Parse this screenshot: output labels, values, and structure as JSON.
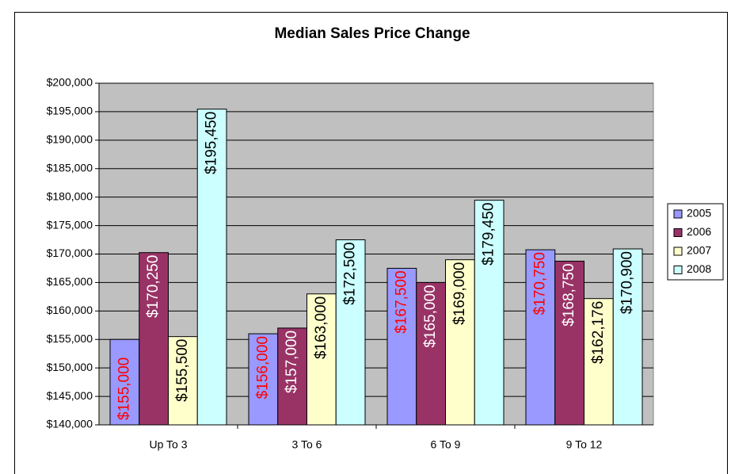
{
  "chart_data": {
    "type": "bar",
    "title": "Median Sales Price Change",
    "categories": [
      "Up To 3",
      "3 To 6",
      "6 To 9",
      "9 To 12"
    ],
    "series": [
      {
        "name": "2005",
        "color": "#9999ff",
        "label_color": "#ff0000",
        "values": [
          155000,
          156000,
          167500,
          170750
        ],
        "value_labels": [
          "$155,000",
          "$156,000",
          "$167,500",
          "$170,750"
        ]
      },
      {
        "name": "2006",
        "color": "#993366",
        "label_color": "#ffffff",
        "values": [
          170250,
          157000,
          165000,
          168750
        ],
        "value_labels": [
          "$170,250",
          "$157,000",
          "$165,000",
          "$168,750"
        ]
      },
      {
        "name": "2007",
        "color": "#ffffcc",
        "label_color": "#000000",
        "values": [
          155500,
          163000,
          169000,
          162176
        ],
        "value_labels": [
          "$155,500",
          "$163,000",
          "$169,000",
          "$162,176"
        ]
      },
      {
        "name": "2008",
        "color": "#ccffff",
        "label_color": "#000000",
        "values": [
          195450,
          172500,
          179450,
          170900
        ],
        "value_labels": [
          "$195,450",
          "$172,500",
          "$179,450",
          "$170,900"
        ]
      }
    ],
    "ylim": [
      140000,
      200000
    ],
    "yticks": [
      {
        "value": 140000,
        "label": "$140,000"
      },
      {
        "value": 145000,
        "label": "$145,000"
      },
      {
        "value": 150000,
        "label": "$150,000"
      },
      {
        "value": 155000,
        "label": "$155,000"
      },
      {
        "value": 160000,
        "label": "$160,000"
      },
      {
        "value": 165000,
        "label": "$165,000"
      },
      {
        "value": 170000,
        "label": "$170,000"
      },
      {
        "value": 175000,
        "label": "$175,000"
      },
      {
        "value": 180000,
        "label": "$180,000"
      },
      {
        "value": 185000,
        "label": "$185,000"
      },
      {
        "value": 190000,
        "label": "$190,000"
      },
      {
        "value": 195000,
        "label": "$195,000"
      },
      {
        "value": 200000,
        "label": "$200,000"
      }
    ],
    "grid": true,
    "legend": "right",
    "plot_background": "#c0c0c0"
  }
}
